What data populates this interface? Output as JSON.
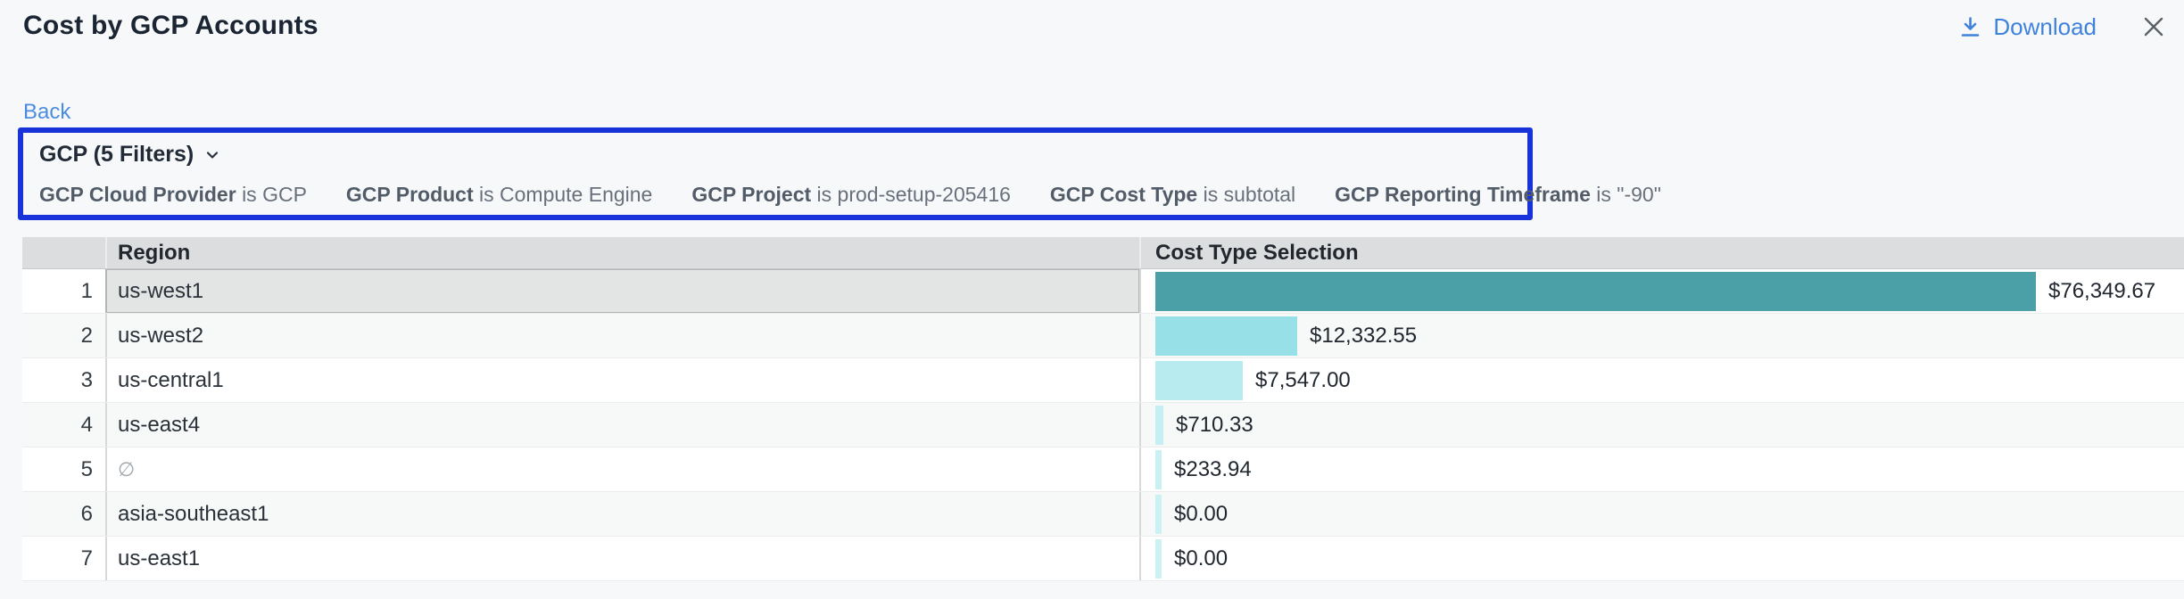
{
  "header": {
    "title": "Cost by GCP Accounts",
    "download_label": "Download"
  },
  "nav": {
    "back_label": "Back"
  },
  "filters": {
    "summary": "GCP (5 Filters)",
    "highlight_color": "#1733d9",
    "items": [
      {
        "name": "GCP Cloud Provider",
        "condition": "is GCP"
      },
      {
        "name": "GCP Product",
        "condition": "is Compute Engine"
      },
      {
        "name": "GCP Project",
        "condition": "is prod-setup-205416"
      },
      {
        "name": "GCP Cost Type",
        "condition": "is subtotal"
      },
      {
        "name": "GCP Reporting Timeframe",
        "condition": "is \"-90\""
      }
    ]
  },
  "table": {
    "columns": {
      "region": "Region",
      "cost": "Cost Type Selection"
    },
    "rows": [
      {
        "index": 1,
        "region": "us-west1",
        "value": "$76,349.67",
        "amount": 76349.67,
        "bar_color": "#4aa0a6",
        "selected": true,
        "empty": false
      },
      {
        "index": 2,
        "region": "us-west2",
        "value": "$12,332.55",
        "amount": 12332.55,
        "bar_color": "#97e0e7",
        "selected": false,
        "empty": false
      },
      {
        "index": 3,
        "region": "us-central1",
        "value": "$7,547.00",
        "amount": 7547.0,
        "bar_color": "#b8ebef",
        "selected": false,
        "empty": false
      },
      {
        "index": 4,
        "region": "us-east4",
        "value": "$710.33",
        "amount": 710.33,
        "bar_color": "#c6eff3",
        "selected": false,
        "empty": false
      },
      {
        "index": 5,
        "region": "∅",
        "value": "$233.94",
        "amount": 233.94,
        "bar_color": "#c9f1f4",
        "selected": false,
        "empty": true
      },
      {
        "index": 6,
        "region": "asia-southeast1",
        "value": "$0.00",
        "amount": 0.0,
        "bar_color": "#cbf1f4",
        "selected": false,
        "empty": false
      },
      {
        "index": 7,
        "region": "us-east1",
        "value": "$0.00",
        "amount": 0.0,
        "bar_color": "#cbf1f4",
        "selected": false,
        "empty": false
      }
    ]
  },
  "chart_data": {
    "type": "bar",
    "orientation": "horizontal",
    "title": "Cost Type Selection",
    "categories": [
      "us-west1",
      "us-west2",
      "us-central1",
      "us-east4",
      "∅",
      "asia-southeast1",
      "us-east1"
    ],
    "values": [
      76349.67,
      12332.55,
      7547.0,
      710.33,
      233.94,
      0.0,
      0.0
    ],
    "value_labels": [
      "$76,349.67",
      "$12,332.55",
      "$7,547.00",
      "$710.33",
      "$233.94",
      "$0.00",
      "$0.00"
    ]
  },
  "colors": {
    "link_blue": "#3f82dc",
    "highlight_border": "#1733d9",
    "bar_max": "#4aa0a6",
    "bar_min": "#cbf1f4",
    "header_bg": "#dbdddf"
  }
}
